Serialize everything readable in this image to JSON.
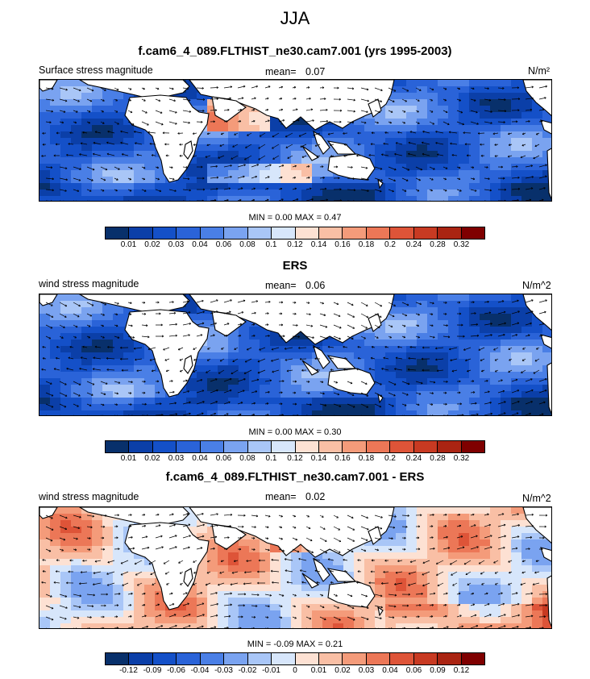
{
  "page": {
    "title": "JJA"
  },
  "panels": [
    {
      "heading": "f.cam6_4_089.FLTHIST_ne30.cam7.001 (yrs 1995-2003)",
      "left_label": "Surface stress magnitude",
      "mean_label": "mean=",
      "mean_value": "0.07",
      "units": "N/m²",
      "minmax": "MIN =  0.00 MAX =  0.47"
    },
    {
      "heading": "ERS",
      "left_label": "wind stress magnitude",
      "mean_label": "mean=",
      "mean_value": "0.06",
      "units": "N/m^2",
      "minmax": "MIN =  0.00 MAX =  0.30"
    },
    {
      "heading": "f.cam6_4_089.FLTHIST_ne30.cam7.001 - ERS",
      "left_label": "wind stress magnitude",
      "mean_label": "mean=",
      "mean_value": "0.02",
      "units": "N/m^2",
      "minmax": "MIN = -0.09 MAX =  0.21"
    }
  ],
  "colors": {
    "mag": [
      "#08306b",
      "#0b3fa8",
      "#1450c8",
      "#2a63d8",
      "#4a7fe6",
      "#7aa3f0",
      "#a9c6f7",
      "#d7e6fb",
      "#fde1d3",
      "#f9bfa5",
      "#f49b7a",
      "#ec7757",
      "#de5438",
      "#c83a22",
      "#aa2412",
      "#7f0000"
    ],
    "diff": [
      "#08306b",
      "#0b3fa8",
      "#1450c8",
      "#2a63d8",
      "#4a7fe6",
      "#7aa3f0",
      "#a9c6f7",
      "#d7e6fb",
      "#fde1d3",
      "#f9bfa5",
      "#f49b7a",
      "#ec7757",
      "#de5438",
      "#c83a22",
      "#aa2412",
      "#7f0000"
    ],
    "land": "#ffffff"
  },
  "chart_data": [
    {
      "type": "heatmap",
      "title": "f.cam6_4_089.FLTHIST_ne30.cam7.001 (yrs 1995-2003)",
      "variable": "Surface stress magnitude",
      "units": "N/m2",
      "mean": 0.07,
      "min": 0.0,
      "max": 0.47,
      "colorbar_levels": [
        0.01,
        0.02,
        0.03,
        0.04,
        0.06,
        0.08,
        0.1,
        0.12,
        0.14,
        0.16,
        0.18,
        0.2,
        0.24,
        0.28,
        0.32
      ],
      "colorbar_labels": [
        "0.01",
        "0.02",
        "0.03",
        "0.04",
        "0.06",
        "0.08",
        "0.1",
        "0.12",
        "0.14",
        "0.16",
        "0.18",
        "0.2",
        "0.24",
        "0.28",
        "0.32"
      ],
      "vectors": "wind stress direction arrows"
    },
    {
      "type": "heatmap",
      "title": "ERS",
      "variable": "wind stress magnitude",
      "units": "N/m^2",
      "mean": 0.06,
      "min": 0.0,
      "max": 0.3,
      "colorbar_levels": [
        0.01,
        0.02,
        0.03,
        0.04,
        0.06,
        0.08,
        0.1,
        0.12,
        0.14,
        0.16,
        0.18,
        0.2,
        0.24,
        0.28,
        0.32
      ],
      "colorbar_labels": [
        "0.01",
        "0.02",
        "0.03",
        "0.04",
        "0.06",
        "0.08",
        "0.1",
        "0.12",
        "0.14",
        "0.16",
        "0.18",
        "0.2",
        "0.24",
        "0.28",
        "0.32"
      ],
      "vectors": "wind stress direction arrows"
    },
    {
      "type": "heatmap",
      "title": "f.cam6_4_089.FLTHIST_ne30.cam7.001 - ERS",
      "variable": "wind stress magnitude",
      "units": "N/m^2",
      "mean": 0.02,
      "min": -0.09,
      "max": 0.21,
      "colorbar_levels": [
        -0.12,
        -0.09,
        -0.06,
        -0.04,
        -0.03,
        -0.02,
        -0.01,
        0,
        0.01,
        0.02,
        0.03,
        0.04,
        0.06,
        0.09,
        0.12
      ],
      "colorbar_labels": [
        "-0.12",
        "-0.09",
        "-0.06",
        "-0.04",
        "-0.03",
        "-0.02",
        "-0.01",
        "0",
        "0.01",
        "0.02",
        "0.03",
        "0.04",
        "0.06",
        "0.09",
        "0.12"
      ],
      "vectors": "wind stress difference arrows"
    }
  ]
}
